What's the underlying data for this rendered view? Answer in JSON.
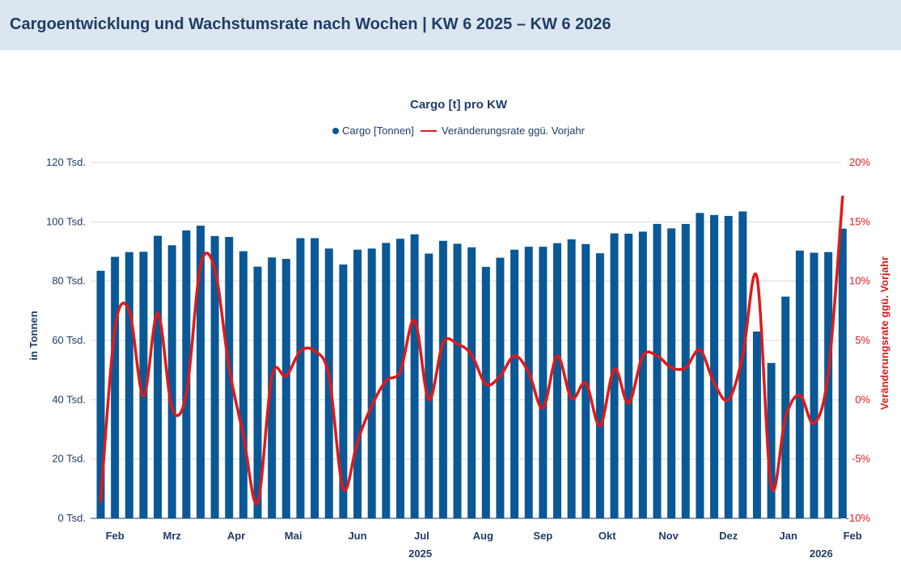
{
  "header": {
    "title": "Cargoentwicklung und Wachstumsrate nach Wochen | KW 6 2025 – KW 6 2026"
  },
  "colors": {
    "bar": "#0a5896",
    "line": "#e0191a",
    "header_bg": "#dce6f0",
    "text": "#1f3d66"
  },
  "chart_data": {
    "type": "bar",
    "title": "Cargo [t] pro KW",
    "legend": [
      "Cargo [Tonnen]",
      "Veränderungsrate ggü. Vorjahr"
    ],
    "ylabel": "in Tonnen",
    "y2label": "Veränderungsrate ggü. Vorjahr",
    "ylim": [
      0,
      120000
    ],
    "y2lim": [
      -10,
      20
    ],
    "yticks": [
      {
        "value": 0,
        "label": "0 Tsd."
      },
      {
        "value": 20000,
        "label": "20 Tsd."
      },
      {
        "value": 40000,
        "label": "40 Tsd."
      },
      {
        "value": 60000,
        "label": "60 Tsd."
      },
      {
        "value": 80000,
        "label": "80 Tsd."
      },
      {
        "value": 100000,
        "label": "100 Tsd."
      },
      {
        "value": 120000,
        "label": "120 Tsd."
      }
    ],
    "y2ticks": [
      {
        "value": -10,
        "label": "-10%"
      },
      {
        "value": -5,
        "label": "-5%"
      },
      {
        "value": 0,
        "label": "0%"
      },
      {
        "value": 5,
        "label": "5%"
      },
      {
        "value": 10,
        "label": "10%"
      },
      {
        "value": 15,
        "label": "15%"
      },
      {
        "value": 20,
        "label": "20%"
      }
    ],
    "month_ticks": [
      {
        "label": "Feb",
        "week_index": 1
      },
      {
        "label": "Mrz",
        "week_index": 5
      },
      {
        "label": "Apr",
        "week_index": 9.5
      },
      {
        "label": "Mai",
        "week_index": 13.5
      },
      {
        "label": "Jun",
        "week_index": 18
      },
      {
        "label": "Jul",
        "week_index": 22.5
      },
      {
        "label": "Aug",
        "week_index": 26.8
      },
      {
        "label": "Sep",
        "week_index": 31
      },
      {
        "label": "Okt",
        "week_index": 35.5
      },
      {
        "label": "Nov",
        "week_index": 39.8
      },
      {
        "label": "Dez",
        "week_index": 44
      },
      {
        "label": "Jan",
        "week_index": 48.2
      },
      {
        "label": "Feb",
        "week_index": 52.7
      }
    ],
    "year_labels": [
      {
        "label": "2025",
        "week_index": 22.4
      },
      {
        "label": "2026",
        "week_index": 50.5
      }
    ],
    "series": [
      {
        "name": "Cargo [Tonnen]",
        "type": "bar",
        "values": [
          83500,
          88200,
          89800,
          89900,
          95300,
          92100,
          97100,
          98700,
          95200,
          94900,
          90100,
          84900,
          88000,
          87500,
          94500,
          94500,
          91000,
          85600,
          90600,
          91000,
          92900,
          94300,
          95800,
          89300,
          93600,
          92600,
          91400,
          84800,
          87900,
          90600,
          91600,
          91600,
          92800,
          94100,
          92500,
          89400,
          96100,
          96000,
          96700,
          99300,
          97800,
          99300,
          103000,
          102300,
          102000,
          103500,
          63000,
          52400,
          74800,
          90300,
          89600,
          89800,
          97700
        ]
      },
      {
        "name": "Veränderungsrate ggü. Vorjahr",
        "type": "line",
        "values": [
          -8.5,
          6.0,
          7.5,
          0.3,
          7.3,
          -0.7,
          0.5,
          11.3,
          11.0,
          2.7,
          -3.0,
          -8.7,
          2.0,
          2.0,
          4.1,
          4.1,
          2.0,
          -7.5,
          -3.5,
          -0.5,
          1.6,
          2.4,
          6.7,
          0.0,
          4.8,
          4.7,
          3.8,
          1.3,
          2.0,
          3.7,
          2.3,
          -0.7,
          3.7,
          0.1,
          1.4,
          -2.2,
          2.6,
          -0.3,
          3.7,
          3.7,
          2.7,
          2.7,
          4.2,
          1.4,
          0.0,
          3.7,
          10.3,
          -7.3,
          -1.5,
          0.4,
          -2.0,
          2.3,
          17.1
        ]
      }
    ]
  }
}
